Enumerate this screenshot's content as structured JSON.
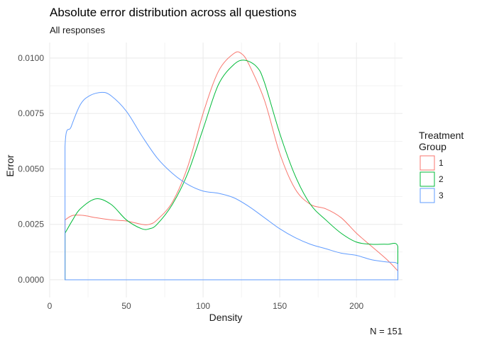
{
  "chart_data": {
    "type": "line",
    "title": "Absolute error distribution across all questions",
    "subtitle": "All responses",
    "caption": "N = 151",
    "xlabel": "Density",
    "ylabel": "Error",
    "xlim": [
      0,
      230
    ],
    "ylim": [
      -0.0008,
      0.0107
    ],
    "x_ticks": [
      0,
      50,
      100,
      150,
      200
    ],
    "x_tick_labels": [
      "0",
      "50",
      "100",
      "150",
      "200"
    ],
    "y_ticks": [
      0,
      0.0025,
      0.005,
      0.0075,
      0.01
    ],
    "y_tick_labels": [
      "0.0000",
      "0.0025",
      "0.0050",
      "0.0075",
      "0.0100"
    ],
    "grid": true,
    "legend": {
      "title": [
        "Treatment",
        "Group"
      ],
      "placement": "right"
    },
    "series": [
      {
        "name": "1",
        "color": "#F8766D",
        "x": [
          10,
          15,
          22,
          30,
          40,
          50,
          60,
          65,
          70,
          80,
          90,
          100,
          110,
          120,
          125,
          130,
          140,
          150,
          160,
          170,
          180,
          190,
          200,
          210,
          220,
          227
        ],
        "y": [
          0.0027,
          0.0029,
          0.0029,
          0.0028,
          0.0027,
          0.00265,
          0.0025,
          0.0025,
          0.0027,
          0.0035,
          0.0051,
          0.0075,
          0.0094,
          0.0102,
          0.0102,
          0.0097,
          0.0081,
          0.0057,
          0.0041,
          0.0034,
          0.0032,
          0.0028,
          0.0021,
          0.0015,
          0.0009,
          0.0004
        ]
      },
      {
        "name": "2",
        "color": "#00BA38",
        "x": [
          10,
          15,
          20,
          30,
          40,
          50,
          60,
          65,
          70,
          80,
          90,
          100,
          110,
          120,
          127,
          135,
          140,
          150,
          160,
          170,
          180,
          190,
          200,
          210,
          220,
          227,
          227
        ],
        "y": [
          0.0021,
          0.0027,
          0.0032,
          0.00365,
          0.0034,
          0.0027,
          0.0023,
          0.0023,
          0.0025,
          0.0034,
          0.0048,
          0.0068,
          0.0088,
          0.0097,
          0.0099,
          0.0096,
          0.0089,
          0.0066,
          0.0047,
          0.0034,
          0.0027,
          0.0021,
          0.0017,
          0.0016,
          0.0016,
          0.0015,
          0
        ]
      },
      {
        "name": "3",
        "color": "#619CFF",
        "x": [
          10,
          10,
          14,
          20,
          26,
          34,
          40,
          50,
          60,
          70,
          80,
          90,
          100,
          110,
          120,
          130,
          140,
          150,
          160,
          170,
          180,
          190,
          200,
          210,
          220,
          227,
          227
        ],
        "y": [
          0,
          0.006,
          0.0069,
          0.0079,
          0.0083,
          0.00845,
          0.0083,
          0.0076,
          0.0065,
          0.0055,
          0.0048,
          0.0043,
          0.004,
          0.0039,
          0.0037,
          0.0033,
          0.0028,
          0.0023,
          0.0019,
          0.0016,
          0.0014,
          0.0012,
          0.0011,
          0.0009,
          0.0008,
          0.0007,
          0
        ]
      }
    ]
  }
}
